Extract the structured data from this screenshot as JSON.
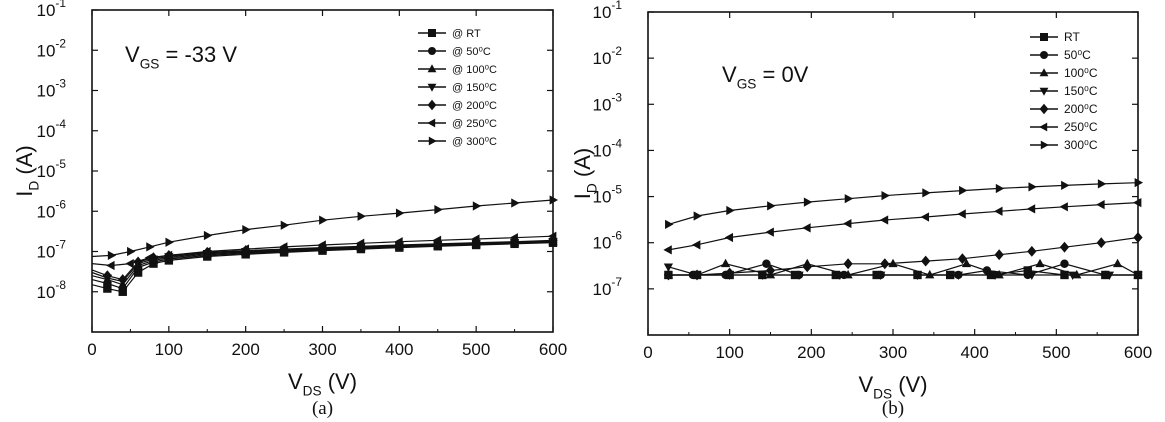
{
  "chart_data": [
    {
      "panel_label": "(a)",
      "type": "line",
      "annotation": {
        "main": "V",
        "sub": "GS",
        "rest": " = -33 V"
      },
      "xlabel": {
        "main": "V",
        "sub": "DS",
        "rest": " (V)"
      },
      "ylabel": {
        "main": "I",
        "sub": "D",
        "rest": " (A)"
      },
      "xlim": [
        0,
        600
      ],
      "ylim": [
        1e-09,
        0.1
      ],
      "yscale": "log",
      "xticks": [
        "0",
        "100",
        "200",
        "300",
        "400",
        "500",
        "600"
      ],
      "yticks": [
        {
          "base": "10",
          "exp": "-8"
        },
        {
          "base": "10",
          "exp": "-7"
        },
        {
          "base": "10",
          "exp": "-6"
        },
        {
          "base": "10",
          "exp": "-5"
        },
        {
          "base": "10",
          "exp": "-4"
        },
        {
          "base": "10",
          "exp": "-3"
        },
        {
          "base": "10",
          "exp": "-2"
        },
        {
          "base": "10",
          "exp": "-1"
        }
      ],
      "legend_position": "top-right",
      "series": [
        {
          "name": "@ RT",
          "marker": "square",
          "points": [
            [
              0,
              1.5e-08
            ],
            [
              20,
              1.2e-08
            ],
            [
              40,
              1e-08
            ],
            [
              60,
              3e-08
            ],
            [
              80,
              5e-08
            ],
            [
              100,
              6e-08
            ],
            [
              150,
              7.5e-08
            ],
            [
              200,
              8.5e-08
            ],
            [
              250,
              9.5e-08
            ],
            [
              300,
              1.05e-07
            ],
            [
              350,
              1.15e-07
            ],
            [
              400,
              1.25e-07
            ],
            [
              450,
              1.35e-07
            ],
            [
              500,
              1.45e-07
            ],
            [
              550,
              1.55e-07
            ],
            [
              600,
              1.65e-07
            ]
          ]
        },
        {
          "name": "@ 50⁰C",
          "marker": "circle",
          "points": [
            [
              0,
              2e-08
            ],
            [
              20,
              1.6e-08
            ],
            [
              40,
              1.2e-08
            ],
            [
              60,
              4e-08
            ],
            [
              80,
              5.5e-08
            ],
            [
              100,
              6.5e-08
            ],
            [
              150,
              8e-08
            ],
            [
              200,
              9e-08
            ],
            [
              250,
              1e-07
            ],
            [
              300,
              1.1e-07
            ],
            [
              350,
              1.2e-07
            ],
            [
              400,
              1.3e-07
            ],
            [
              450,
              1.4e-07
            ],
            [
              500,
              1.5e-07
            ],
            [
              550,
              1.6e-07
            ],
            [
              600,
              1.7e-07
            ]
          ]
        },
        {
          "name": "@ 100⁰C",
          "marker": "triangle-up",
          "points": [
            [
              0,
              2.5e-08
            ],
            [
              20,
              2e-08
            ],
            [
              40,
              1.5e-08
            ],
            [
              60,
              4.5e-08
            ],
            [
              80,
              6e-08
            ],
            [
              100,
              7e-08
            ],
            [
              150,
              8.5e-08
            ],
            [
              200,
              9.5e-08
            ],
            [
              250,
              1.05e-07
            ],
            [
              300,
              1.15e-07
            ],
            [
              350,
              1.25e-07
            ],
            [
              400,
              1.35e-07
            ],
            [
              450,
              1.45e-07
            ],
            [
              500,
              1.55e-07
            ],
            [
              550,
              1.65e-07
            ],
            [
              600,
              1.75e-07
            ]
          ]
        },
        {
          "name": "@ 150⁰C",
          "marker": "triangle-down",
          "points": [
            [
              0,
              3e-08
            ],
            [
              20,
              2.2e-08
            ],
            [
              40,
              1.8e-08
            ],
            [
              60,
              5e-08
            ],
            [
              80,
              6.5e-08
            ],
            [
              100,
              7.5e-08
            ],
            [
              150,
              9e-08
            ],
            [
              200,
              1e-07
            ],
            [
              250,
              1.1e-07
            ],
            [
              300,
              1.2e-07
            ],
            [
              350,
              1.3e-07
            ],
            [
              400,
              1.4e-07
            ],
            [
              450,
              1.5e-07
            ],
            [
              500,
              1.6e-07
            ],
            [
              550,
              1.7e-07
            ],
            [
              600,
              1.8e-07
            ]
          ]
        },
        {
          "name": "@ 200⁰C",
          "marker": "diamond",
          "points": [
            [
              0,
              3.5e-08
            ],
            [
              20,
              2.5e-08
            ],
            [
              40,
              2e-08
            ],
            [
              60,
              5.5e-08
            ],
            [
              80,
              7e-08
            ],
            [
              100,
              8e-08
            ],
            [
              150,
              9.5e-08
            ],
            [
              200,
              1.05e-07
            ],
            [
              250,
              1.15e-07
            ],
            [
              300,
              1.25e-07
            ],
            [
              350,
              1.35e-07
            ],
            [
              400,
              1.45e-07
            ],
            [
              450,
              1.55e-07
            ],
            [
              500,
              1.65e-07
            ],
            [
              550,
              1.75e-07
            ],
            [
              600,
              1.9e-07
            ]
          ]
        },
        {
          "name": "@ 250⁰C",
          "marker": "triangle-left",
          "points": [
            [
              0,
              5e-08
            ],
            [
              25,
              4.5e-08
            ],
            [
              50,
              5e-08
            ],
            [
              75,
              7e-08
            ],
            [
              100,
              8e-08
            ],
            [
              150,
              1e-07
            ],
            [
              200,
              1.15e-07
            ],
            [
              250,
              1.3e-07
            ],
            [
              300,
              1.45e-07
            ],
            [
              350,
              1.6e-07
            ],
            [
              400,
              1.75e-07
            ],
            [
              450,
              1.9e-07
            ],
            [
              500,
              2.05e-07
            ],
            [
              550,
              2.2e-07
            ],
            [
              600,
              2.4e-07
            ]
          ]
        },
        {
          "name": "@ 300⁰C",
          "marker": "triangle-right",
          "points": [
            [
              0,
              7.5e-08
            ],
            [
              25,
              8e-08
            ],
            [
              50,
              1e-07
            ],
            [
              75,
              1.3e-07
            ],
            [
              100,
              1.7e-07
            ],
            [
              150,
              2.5e-07
            ],
            [
              200,
              3.5e-07
            ],
            [
              250,
              4.5e-07
            ],
            [
              300,
              6e-07
            ],
            [
              350,
              7.5e-07
            ],
            [
              400,
              9e-07
            ],
            [
              450,
              1.1e-06
            ],
            [
              500,
              1.35e-06
            ],
            [
              550,
              1.6e-06
            ],
            [
              600,
              1.9e-06
            ]
          ]
        }
      ]
    },
    {
      "panel_label": "(b)",
      "type": "line",
      "annotation": {
        "main": "V",
        "sub": "GS",
        "rest": " = 0V"
      },
      "xlabel": {
        "main": "V",
        "sub": "DS",
        "rest": " (V)"
      },
      "ylabel": {
        "main": "I",
        "sub": "D",
        "rest": " (A)"
      },
      "xlim": [
        0,
        600
      ],
      "ylim": [
        1e-08,
        0.1
      ],
      "yscale": "log",
      "xticks": [
        "0",
        "100",
        "200",
        "300",
        "400",
        "500",
        "600"
      ],
      "yticks": [
        {
          "base": "10",
          "exp": "-7"
        },
        {
          "base": "10",
          "exp": "-6"
        },
        {
          "base": "10",
          "exp": "-5"
        },
        {
          "base": "10",
          "exp": "-4"
        },
        {
          "base": "10",
          "exp": "-3"
        },
        {
          "base": "10",
          "exp": "-2"
        },
        {
          "base": "10",
          "exp": "-1"
        }
      ],
      "legend_position": "top-right",
      "series": [
        {
          "name": "RT",
          "marker": "square",
          "points": [
            [
              25,
              2e-07
            ],
            [
              60,
              2e-07
            ],
            [
              100,
              2e-07
            ],
            [
              140,
              2e-07
            ],
            [
              180,
              2e-07
            ],
            [
              230,
              2e-07
            ],
            [
              280,
              2e-07
            ],
            [
              330,
              2e-07
            ],
            [
              370,
              2e-07
            ],
            [
              420,
              2e-07
            ],
            [
              465,
              2.5e-07
            ],
            [
              510,
              2e-07
            ],
            [
              560,
              2e-07
            ],
            [
              600,
              2e-07
            ]
          ]
        },
        {
          "name": "50⁰C",
          "marker": "circle",
          "points": [
            [
              25,
              2e-07
            ],
            [
              55,
              2e-07
            ],
            [
              95,
              2e-07
            ],
            [
              145,
              3.5e-07
            ],
            [
              185,
              2e-07
            ],
            [
              240,
              2e-07
            ],
            [
              285,
              2e-07
            ],
            [
              330,
              2e-07
            ],
            [
              380,
              2e-07
            ],
            [
              415,
              2.5e-07
            ],
            [
              465,
              2e-07
            ],
            [
              510,
              3.5e-07
            ],
            [
              560,
              2e-07
            ],
            [
              600,
              2e-07
            ]
          ]
        },
        {
          "name": "100⁰C",
          "marker": "triangle-up",
          "points": [
            [
              25,
              2e-07
            ],
            [
              60,
              2e-07
            ],
            [
              95,
              3.5e-07
            ],
            [
              150,
              2e-07
            ],
            [
              195,
              3.5e-07
            ],
            [
              245,
              2e-07
            ],
            [
              300,
              3.5e-07
            ],
            [
              345,
              2e-07
            ],
            [
              390,
              3.5e-07
            ],
            [
              430,
              2e-07
            ],
            [
              480,
              3.5e-07
            ],
            [
              525,
              2e-07
            ],
            [
              575,
              3.5e-07
            ],
            [
              600,
              2e-07
            ]
          ]
        },
        {
          "name": "150⁰C",
          "marker": "triangle-down",
          "points": [
            [
              25,
              3e-07
            ],
            [
              60,
              2e-07
            ],
            [
              100,
              2e-07
            ],
            [
              140,
              2e-07
            ],
            [
              185,
              2e-07
            ],
            [
              235,
              2e-07
            ],
            [
              285,
              2e-07
            ],
            [
              330,
              2e-07
            ],
            [
              380,
              2e-07
            ],
            [
              425,
              2e-07
            ],
            [
              470,
              2e-07
            ],
            [
              520,
              2e-07
            ],
            [
              565,
              2e-07
            ],
            [
              600,
              2e-07
            ]
          ]
        },
        {
          "name": "200⁰C",
          "marker": "diamond",
          "points": [
            [
              25,
              2e-07
            ],
            [
              60,
              2e-07
            ],
            [
              100,
              2.2e-07
            ],
            [
              150,
              2.5e-07
            ],
            [
              195,
              3e-07
            ],
            [
              245,
              3.5e-07
            ],
            [
              290,
              3.5e-07
            ],
            [
              340,
              4e-07
            ],
            [
              385,
              4.5e-07
            ],
            [
              430,
              5.5e-07
            ],
            [
              470,
              6.5e-07
            ],
            [
              510,
              8e-07
            ],
            [
              555,
              1e-06
            ],
            [
              600,
              1.3e-06
            ]
          ]
        },
        {
          "name": "250⁰C",
          "marker": "triangle-left",
          "points": [
            [
              25,
              7e-07
            ],
            [
              60,
              9e-07
            ],
            [
              100,
              1.3e-06
            ],
            [
              150,
              1.7e-06
            ],
            [
              195,
              2.1e-06
            ],
            [
              245,
              2.6e-06
            ],
            [
              290,
              3.1e-06
            ],
            [
              340,
              3.6e-06
            ],
            [
              385,
              4.2e-06
            ],
            [
              430,
              4.8e-06
            ],
            [
              470,
              5.4e-06
            ],
            [
              510,
              6e-06
            ],
            [
              555,
              6.7e-06
            ],
            [
              600,
              7.4e-06
            ]
          ]
        },
        {
          "name": "300⁰C",
          "marker": "triangle-right",
          "points": [
            [
              25,
              2.5e-06
            ],
            [
              60,
              3.8e-06
            ],
            [
              100,
              5e-06
            ],
            [
              150,
              6.3e-06
            ],
            [
              195,
              7.6e-06
            ],
            [
              245,
              9e-06
            ],
            [
              290,
              1.05e-05
            ],
            [
              340,
              1.2e-05
            ],
            [
              385,
              1.35e-05
            ],
            [
              430,
              1.5e-05
            ],
            [
              470,
              1.62e-05
            ],
            [
              510,
              1.75e-05
            ],
            [
              555,
              1.88e-05
            ],
            [
              600,
              2e-05
            ]
          ]
        }
      ]
    }
  ]
}
